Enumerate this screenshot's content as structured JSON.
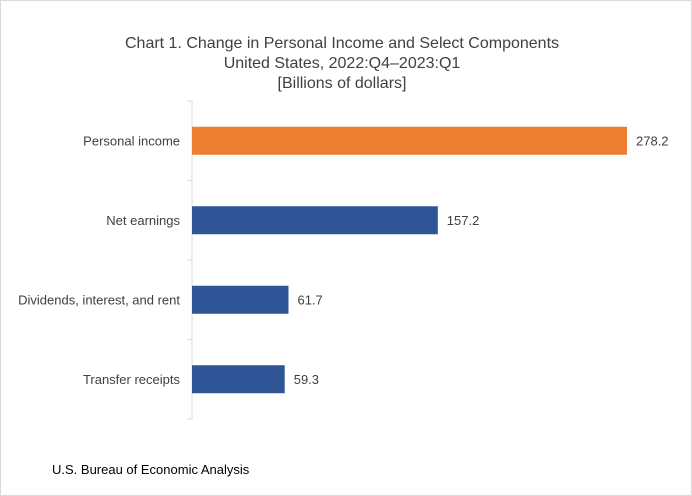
{
  "chart_data": {
    "type": "bar",
    "orientation": "horizontal",
    "title": "Chart 1. Change in Personal Income and Select Components",
    "subtitle": "United States, 2022:Q4–2023:Q1",
    "units": "[Billions of dollars]",
    "categories": [
      "Personal income",
      "Net earnings",
      "Dividends, interest, and rent",
      "Transfer receipts"
    ],
    "values": [
      278.2,
      157.2,
      61.7,
      59.3
    ],
    "value_labels": [
      "278.2",
      "157.2",
      "61.7",
      "59.3"
    ],
    "bar_colors": [
      "#ED7D31",
      "#2F5597",
      "#2F5597",
      "#2F5597"
    ],
    "xlim": [
      0,
      300
    ],
    "grid": false,
    "legend": "none"
  },
  "source": "U.S. Bureau of Economic Analysis"
}
